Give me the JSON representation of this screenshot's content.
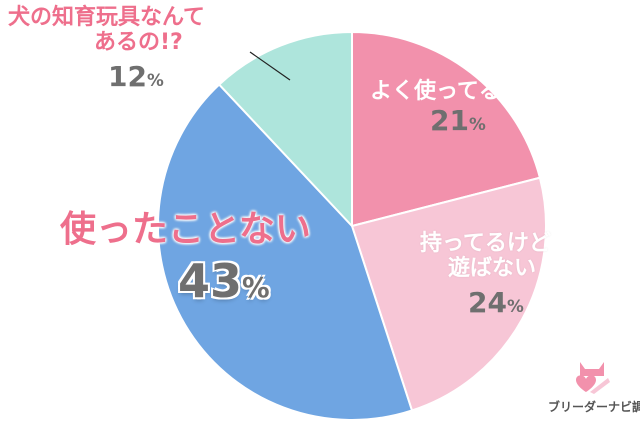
{
  "chart_data": {
    "type": "pie",
    "start_angle_deg": 0,
    "direction": "clockwise",
    "slices": [
      {
        "label": "よく使ってる!",
        "value": 21,
        "color": "#f291ac"
      },
      {
        "label": "持ってるけど遊ばない",
        "label_lines": [
          "持ってるけど",
          "遊ばない"
        ],
        "value": 24,
        "color": "#f7c6d6"
      },
      {
        "label": "使ったことない",
        "value": 43,
        "color": "#6fa5e2"
      },
      {
        "label": "犬の知育玩具なんてあるの!?",
        "label_lines": [
          "犬の知育玩具なんて",
          "あるの!?"
        ],
        "value": 12,
        "color": "#aee5dc"
      }
    ],
    "value_suffix": "%",
    "slice_border_color": "#ffffff"
  },
  "credit": {
    "text": "ブリーダーナビ調べ",
    "logo_icon": "cat-heart-logo-icon",
    "colors": {
      "primary": "#f291ac",
      "accent": "#f7c6d6"
    }
  }
}
